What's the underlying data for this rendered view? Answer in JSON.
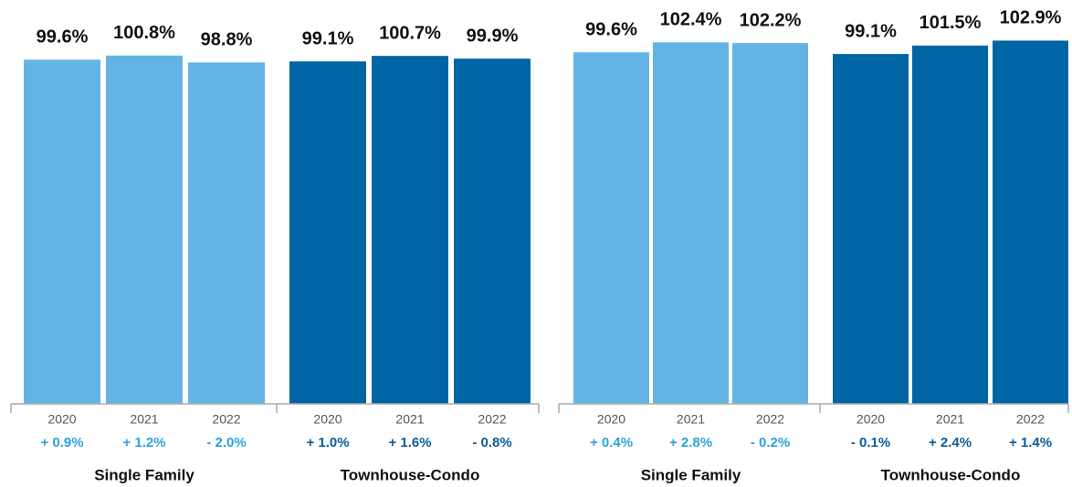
{
  "chart_data": [
    {
      "type": "bar",
      "categories": [
        "2020",
        "2021",
        "2022"
      ],
      "ylim": [
        0,
        110
      ],
      "series": [
        {
          "name": "Single Family",
          "color": "#63b4e4",
          "change_color": "#2ba3d9",
          "values": [
            99.6,
            100.8,
            98.8
          ],
          "value_labels": [
            "99.6%",
            "100.8%",
            "98.8%"
          ],
          "changes": [
            0.9,
            1.2,
            -2.0
          ],
          "change_labels": [
            "+ 0.9%",
            "+ 1.2%",
            "- 2.0%"
          ]
        },
        {
          "name": "Townhouse-Condo",
          "color": "#0065a4",
          "change_color": "#0a5c99",
          "values": [
            99.1,
            100.7,
            99.9
          ],
          "value_labels": [
            "99.1%",
            "100.7%",
            "99.9%"
          ],
          "changes": [
            1.0,
            1.6,
            -0.8
          ],
          "change_labels": [
            "+ 1.0%",
            "+ 1.6%",
            "- 0.8%"
          ]
        }
      ]
    },
    {
      "type": "bar",
      "categories": [
        "2020",
        "2021",
        "2022"
      ],
      "ylim": [
        0,
        110
      ],
      "series": [
        {
          "name": "Single Family",
          "color": "#63b4e4",
          "change_color": "#2ba3d9",
          "values": [
            99.6,
            102.4,
            102.2
          ],
          "value_labels": [
            "99.6%",
            "102.4%",
            "102.2%"
          ],
          "changes": [
            0.4,
            2.8,
            -0.2
          ],
          "change_labels": [
            "+ 0.4%",
            "+ 2.8%",
            "- 0.2%"
          ]
        },
        {
          "name": "Townhouse-Condo",
          "color": "#0065a4",
          "change_color": "#0a5c99",
          "values": [
            99.1,
            101.5,
            102.9
          ],
          "value_labels": [
            "99.1%",
            "101.5%",
            "102.9%"
          ],
          "changes": [
            -0.1,
            2.4,
            1.4
          ],
          "change_labels": [
            "- 0.1%",
            "+ 2.4%",
            "+ 1.4%"
          ]
        }
      ]
    }
  ]
}
